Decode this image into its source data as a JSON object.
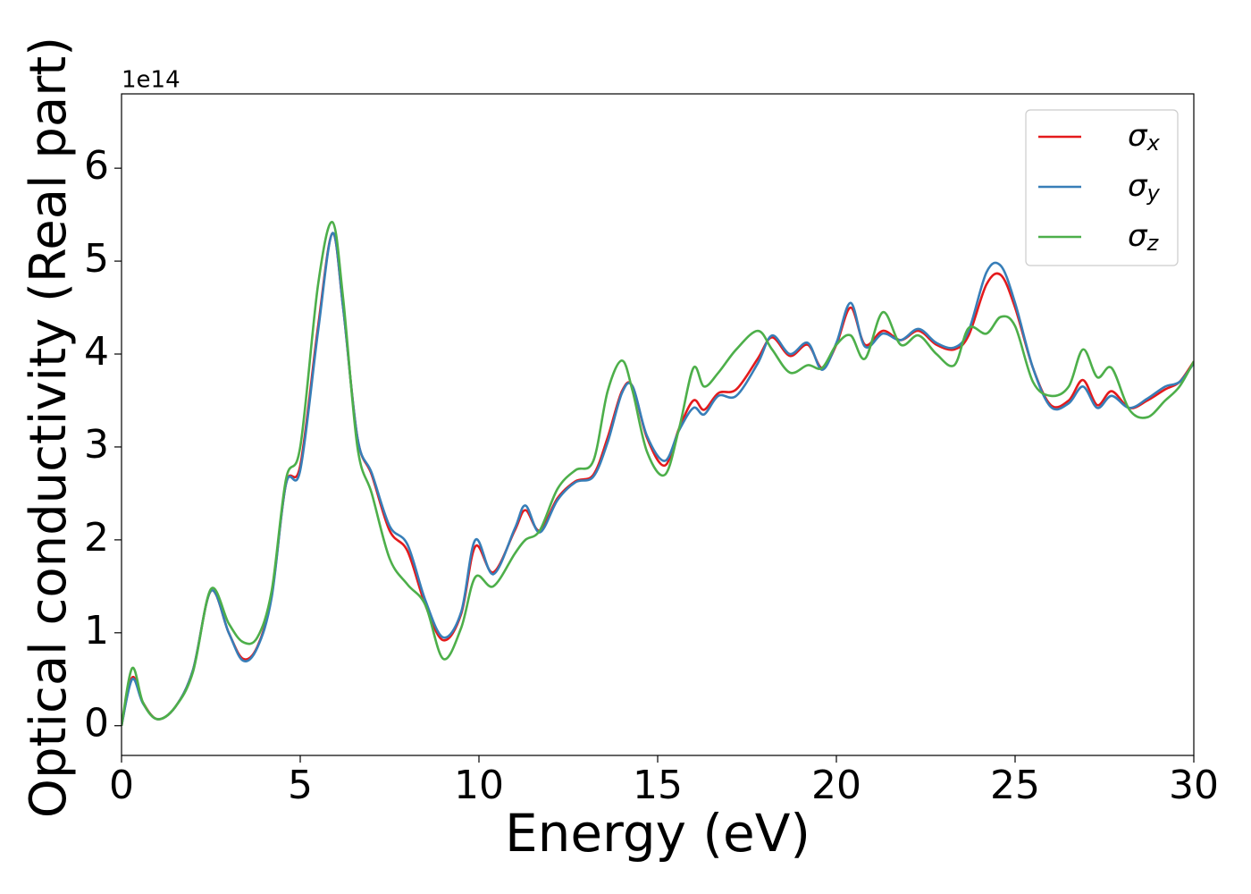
{
  "chart_data": {
    "type": "line",
    "xlabel": "Energy (eV)",
    "ylabel": "Optical conductivity (Real part)",
    "y_offset_label": "1e14",
    "xlim": [
      0,
      30
    ],
    "xticks": [
      0,
      5,
      10,
      15,
      20,
      25,
      30
    ],
    "ylim": [
      -0.32,
      6.8
    ],
    "yticks": [
      0,
      1,
      2,
      3,
      4,
      5,
      6
    ],
    "legend": "upper right",
    "x": [
      0,
      0.3,
      0.6,
      1.0,
      1.5,
      2.0,
      2.5,
      3.0,
      3.4,
      3.8,
      4.2,
      4.6,
      5.0,
      5.5,
      5.9,
      6.2,
      6.6,
      7.0,
      7.5,
      8.0,
      8.5,
      9.0,
      9.5,
      9.9,
      10.4,
      11.0,
      11.3,
      11.7,
      12.2,
      12.7,
      13.2,
      13.6,
      14.0,
      14.3,
      14.7,
      15.2,
      15.6,
      16.0,
      16.3,
      16.7,
      17.2,
      17.8,
      18.2,
      18.7,
      19.2,
      19.6,
      20.0,
      20.4,
      20.8,
      21.3,
      21.8,
      22.3,
      22.8,
      23.3,
      23.7,
      24.2,
      24.6,
      25.0,
      25.5,
      26.0,
      26.5,
      26.9,
      27.3,
      27.7,
      28.2,
      28.7,
      29.2,
      29.6,
      30.0
    ],
    "series": [
      {
        "name": "σx",
        "color": "#e41a1c",
        "values": [
          0,
          0.52,
          0.25,
          0.07,
          0.2,
          0.6,
          1.45,
          1.0,
          0.72,
          0.85,
          1.4,
          2.6,
          2.8,
          4.3,
          5.3,
          4.5,
          3.1,
          2.7,
          2.1,
          1.88,
          1.3,
          0.92,
          1.2,
          1.93,
          1.65,
          2.1,
          2.32,
          2.1,
          2.45,
          2.63,
          2.7,
          3.1,
          3.6,
          3.65,
          3.1,
          2.8,
          3.2,
          3.5,
          3.4,
          3.58,
          3.62,
          3.95,
          4.18,
          3.98,
          4.1,
          3.85,
          4.1,
          4.5,
          4.1,
          4.25,
          4.15,
          4.25,
          4.1,
          4.05,
          4.2,
          4.75,
          4.85,
          4.5,
          3.85,
          3.45,
          3.5,
          3.72,
          3.45,
          3.6,
          3.42,
          3.5,
          3.62,
          3.7,
          3.92
        ]
      },
      {
        "name": "σy",
        "color": "#377eb8",
        "values": [
          0,
          0.5,
          0.24,
          0.07,
          0.2,
          0.6,
          1.45,
          1.0,
          0.7,
          0.84,
          1.38,
          2.6,
          2.75,
          4.25,
          5.3,
          4.5,
          3.1,
          2.72,
          2.15,
          1.95,
          1.35,
          0.95,
          1.22,
          2.0,
          1.63,
          2.12,
          2.37,
          2.08,
          2.43,
          2.62,
          2.68,
          3.05,
          3.58,
          3.65,
          3.12,
          2.85,
          3.18,
          3.42,
          3.35,
          3.55,
          3.55,
          3.9,
          4.2,
          4.0,
          4.12,
          3.83,
          4.12,
          4.55,
          4.08,
          4.22,
          4.15,
          4.27,
          4.12,
          4.07,
          4.25,
          4.88,
          4.95,
          4.55,
          3.85,
          3.43,
          3.47,
          3.65,
          3.42,
          3.55,
          3.42,
          3.52,
          3.65,
          3.7,
          3.9
        ]
      },
      {
        "name": "σz",
        "color": "#4daf4a",
        "values": [
          0,
          0.62,
          0.25,
          0.07,
          0.2,
          0.58,
          1.47,
          1.1,
          0.9,
          0.95,
          1.45,
          2.65,
          3.0,
          4.75,
          5.42,
          4.6,
          3.0,
          2.5,
          1.8,
          1.52,
          1.3,
          0.72,
          1.05,
          1.6,
          1.5,
          1.85,
          2.0,
          2.1,
          2.55,
          2.75,
          2.85,
          3.6,
          3.93,
          3.6,
          2.95,
          2.7,
          3.2,
          3.85,
          3.65,
          3.8,
          4.05,
          4.25,
          4.05,
          3.8,
          3.88,
          3.85,
          4.1,
          4.2,
          3.95,
          4.45,
          4.1,
          4.2,
          4.0,
          3.88,
          4.28,
          4.22,
          4.4,
          4.3,
          3.7,
          3.55,
          3.65,
          4.05,
          3.75,
          3.85,
          3.4,
          3.32,
          3.5,
          3.65,
          3.92
        ]
      }
    ]
  }
}
